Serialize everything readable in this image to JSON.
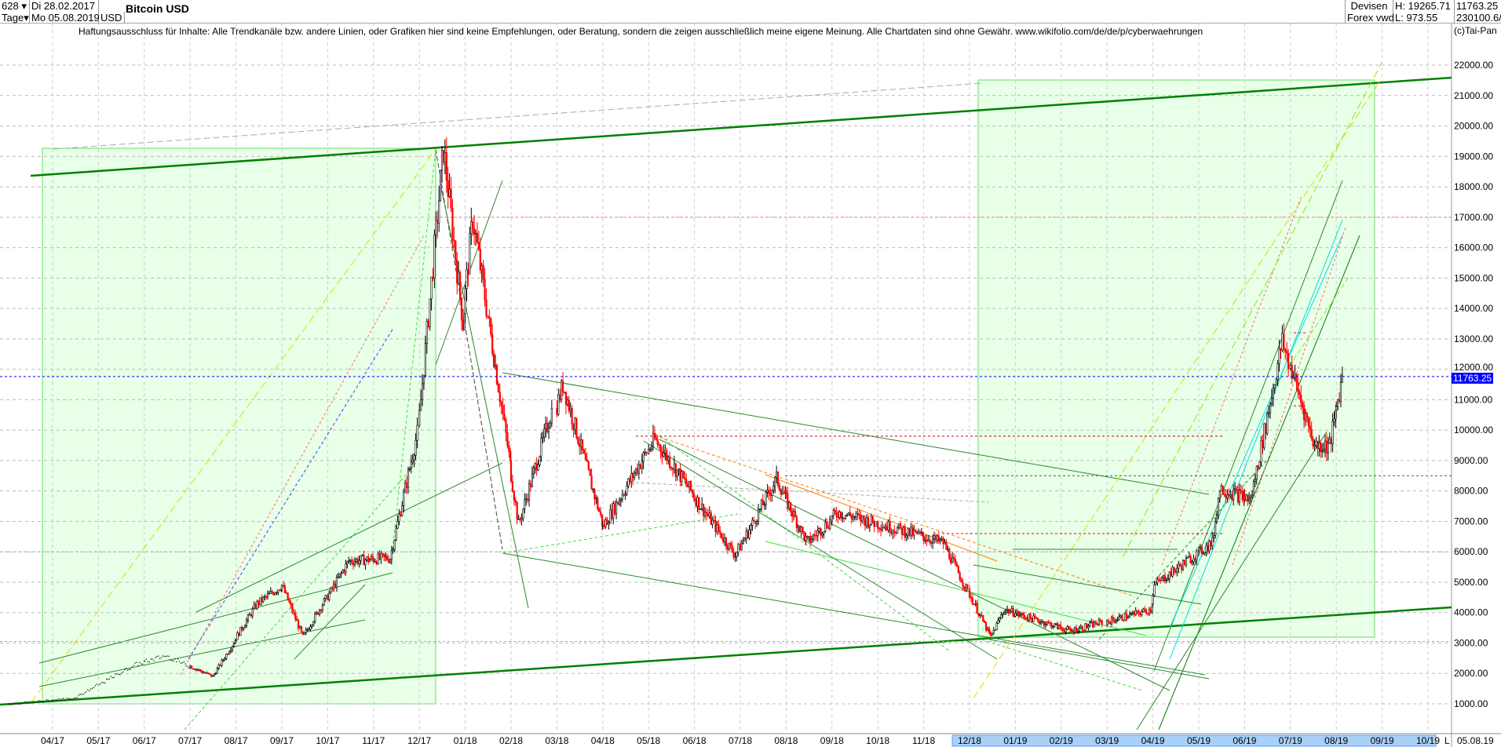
{
  "header": {
    "count": "628",
    "period": "Tage",
    "start_date": "Di 28.02.2017",
    "end_date": "Mo 05.08.2019",
    "currency": "USD",
    "title": "Bitcoin USD",
    "source1": "Devisen",
    "source2": "Forex vwd",
    "high": "H: 19265.71",
    "low": "L: 973.55",
    "last": "11763.25",
    "volume": "230100.6/"
  },
  "disclaimer": "Haftungsausschluss für Inhalte: Alle Trendkanäle bzw. andere Linien, oder Grafiken hier sind keine Empfehlungen, oder Beratung, sondern die zeigen ausschließlich meine eigene Meinung. Alle Chartdaten sind ohne Gewähr.  www.wikifolio.com/de/de/p/cyberwaehrungen",
  "copyright": "(c)Tai-Pan",
  "last_price_label": "11763.25",
  "axis_end_marker": "L",
  "axis_end_date": "05.08.19",
  "colors": {
    "up": "#000000",
    "down": "#ff0000",
    "channel": "#008000",
    "zone": "#ccffcc",
    "last": "#0000ff",
    "highlight": "#a8d0f8"
  },
  "chart_data": {
    "type": "candlestick",
    "title": "Bitcoin USD",
    "ylim": [
      0,
      22500
    ],
    "y_ticks": [
      "1000.00",
      "2000.00",
      "3000.00",
      "4000.00",
      "5000.00",
      "6000.00",
      "7000.00",
      "8000.00",
      "9000.00",
      "10000.00",
      "11000.00",
      "12000.00",
      "13000.00",
      "14000.00",
      "15000.00",
      "16000.00",
      "17000.00",
      "18000.00",
      "19000.00",
      "20000.00",
      "21000.00",
      "22000.00"
    ],
    "x_ticks": [
      "04/17",
      "05/17",
      "06/17",
      "07/17",
      "08/17",
      "09/17",
      "10/17",
      "11/17",
      "12/17",
      "01/18",
      "02/18",
      "03/18",
      "04/18",
      "05/18",
      "06/18",
      "07/18",
      "08/18",
      "09/18",
      "10/18",
      "11/18",
      "12/18",
      "01/19",
      "02/19",
      "03/19",
      "04/19",
      "05/19",
      "06/19",
      "07/19",
      "08/19",
      "09/19",
      "10/19"
    ],
    "price_path": [
      [
        "2017-03-01",
        1000
      ],
      [
        "2017-04-15",
        1200
      ],
      [
        "2017-05-25",
        2300
      ],
      [
        "2017-06-15",
        2600
      ],
      [
        "2017-07-16",
        1900
      ],
      [
        "2017-08-15",
        4300
      ],
      [
        "2017-09-01",
        4900
      ],
      [
        "2017-09-15",
        3200
      ],
      [
        "2017-10-15",
        5700
      ],
      [
        "2017-11-12",
        5800
      ],
      [
        "2017-11-30",
        9900
      ],
      [
        "2017-12-17",
        19265
      ],
      [
        "2017-12-30",
        13500
      ],
      [
        "2018-01-06",
        17000
      ],
      [
        "2018-02-06",
        6900
      ],
      [
        "2018-03-05",
        11500
      ],
      [
        "2018-04-01",
        6800
      ],
      [
        "2018-05-05",
        9700
      ],
      [
        "2018-06-28",
        5900
      ],
      [
        "2018-07-25",
        8400
      ],
      [
        "2018-08-15",
        6300
      ],
      [
        "2018-09-05",
        7300
      ],
      [
        "2018-11-14",
        6300
      ],
      [
        "2018-12-15",
        3200
      ],
      [
        "2018-12-24",
        4100
      ],
      [
        "2019-02-07",
        3400
      ],
      [
        "2019-03-30",
        4100
      ],
      [
        "2019-04-02",
        4900
      ],
      [
        "2019-05-10",
        6300
      ],
      [
        "2019-05-15",
        8100
      ],
      [
        "2019-06-05",
        7700
      ],
      [
        "2019-06-26",
        12900
      ],
      [
        "2019-07-17",
        9500
      ],
      [
        "2019-07-27",
        9500
      ],
      [
        "2019-08-05",
        11763
      ]
    ]
  }
}
